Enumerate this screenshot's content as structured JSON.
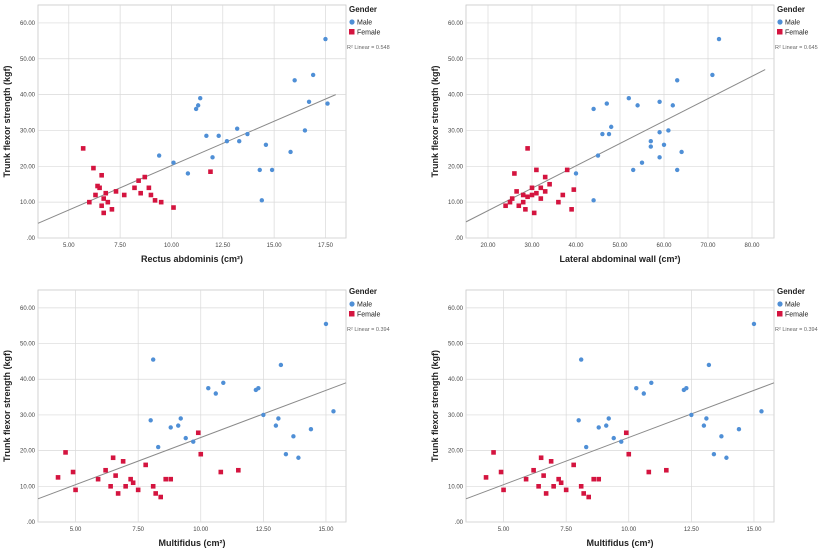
{
  "legend": {
    "title": "Gender",
    "male_label": "Male",
    "female_label": "Female",
    "male_color": "#4f8fd6",
    "female_color": "#d4143f"
  },
  "chart_data": [
    {
      "type": "scatter",
      "xlabel": "Rectus abdominis (cm²)",
      "ylabel": "Trunk flexor strength (kgf)",
      "r2_label": "R² Linear = 0.548",
      "xlim": [
        3.5,
        18.5
      ],
      "ylim": [
        0,
        65
      ],
      "xticks": [
        5.0,
        7.5,
        10.0,
        12.5,
        15.0,
        17.5
      ],
      "xtick_labels": [
        "5.00",
        "7.50",
        "10.00",
        "12.50",
        "15.00",
        "17.50"
      ],
      "yticks": [
        0,
        10,
        20,
        30,
        40,
        50,
        60
      ],
      "ytick_labels": [
        ".00",
        "10.00",
        "20.00",
        "30.00",
        "40.00",
        "50.00",
        "60.00"
      ],
      "fit_line": {
        "x": [
          3.5,
          18.0
        ],
        "y": [
          4.1,
          40.0
        ]
      },
      "series": [
        {
          "name": "Male",
          "marker": "circle",
          "points": [
            [
              9.4,
              23
            ],
            [
              10.1,
              21
            ],
            [
              10.8,
              18
            ],
            [
              11.2,
              36
            ],
            [
              11.4,
              39
            ],
            [
              11.3,
              37
            ],
            [
              11.7,
              28.5
            ],
            [
              12.0,
              22.5
            ],
            [
              12.3,
              28.5
            ],
            [
              12.7,
              27
            ],
            [
              13.2,
              30.5
            ],
            [
              13.3,
              27
            ],
            [
              13.7,
              29
            ],
            [
              14.3,
              19
            ],
            [
              14.6,
              26
            ],
            [
              14.9,
              19
            ],
            [
              14.4,
              10.5
            ],
            [
              15.8,
              24
            ],
            [
              16.0,
              44
            ],
            [
              16.5,
              30
            ],
            [
              16.7,
              38
            ],
            [
              16.9,
              45.5
            ],
            [
              17.5,
              55.5
            ],
            [
              17.6,
              37.5
            ]
          ]
        },
        {
          "name": "Female",
          "marker": "square",
          "points": [
            [
              5.7,
              25
            ],
            [
              6.0,
              10
            ],
            [
              6.2,
              19.5
            ],
            [
              6.3,
              12
            ],
            [
              6.4,
              14.5
            ],
            [
              6.5,
              14
            ],
            [
              6.6,
              17.5
            ],
            [
              6.6,
              9
            ],
            [
              6.7,
              11
            ],
            [
              6.7,
              7
            ],
            [
              6.8,
              12.5
            ],
            [
              6.9,
              10
            ],
            [
              7.1,
              8
            ],
            [
              7.3,
              13
            ],
            [
              7.7,
              12
            ],
            [
              8.2,
              14
            ],
            [
              8.4,
              16
            ],
            [
              8.5,
              12.5
            ],
            [
              8.7,
              17
            ],
            [
              8.9,
              14
            ],
            [
              9.0,
              12
            ],
            [
              9.2,
              10.5
            ],
            [
              9.5,
              10
            ],
            [
              10.1,
              8.5
            ],
            [
              11.9,
              18.5
            ]
          ]
        }
      ]
    },
    {
      "type": "scatter",
      "xlabel": "Lateral abdominal wall (cm²)",
      "ylabel": "Trunk flexor strength (kgf)",
      "r2_label": "R² Linear = 0.645",
      "xlim": [
        15,
        85
      ],
      "ylim": [
        0,
        65
      ],
      "xticks": [
        20,
        30,
        40,
        50,
        60,
        70,
        80
      ],
      "xtick_labels": [
        "20.00",
        "30.00",
        "40.00",
        "50.00",
        "60.00",
        "70.00",
        "80.00"
      ],
      "yticks": [
        0,
        10,
        20,
        30,
        40,
        50,
        60
      ],
      "ytick_labels": [
        ".00",
        "10.00",
        "20.00",
        "30.00",
        "40.00",
        "50.00",
        "60.00"
      ],
      "fit_line": {
        "x": [
          15,
          83
        ],
        "y": [
          4.5,
          47.0
        ]
      },
      "series": [
        {
          "name": "Male",
          "marker": "circle",
          "points": [
            [
              40.0,
              18
            ],
            [
              44.0,
              10.5
            ],
            [
              44.0,
              36
            ],
            [
              45.0,
              23
            ],
            [
              46.0,
              29
            ],
            [
              47.0,
              37.5
            ],
            [
              48.0,
              31
            ],
            [
              47.5,
              29
            ],
            [
              52.0,
              39
            ],
            [
              53.0,
              19
            ],
            [
              54.0,
              37
            ],
            [
              55.0,
              21
            ],
            [
              57.0,
              27
            ],
            [
              57.0,
              25.5
            ],
            [
              59.0,
              38
            ],
            [
              59.0,
              22.5
            ],
            [
              59.0,
              29.5
            ],
            [
              60.0,
              26
            ],
            [
              61.0,
              30
            ],
            [
              62.0,
              37
            ],
            [
              63.0,
              44
            ],
            [
              63.0,
              19
            ],
            [
              64.0,
              24
            ],
            [
              71.0,
              45.5
            ],
            [
              72.5,
              55.5
            ]
          ]
        },
        {
          "name": "Female",
          "marker": "square",
          "points": [
            [
              24.0,
              9
            ],
            [
              25.0,
              10
            ],
            [
              25.5,
              11
            ],
            [
              26.0,
              18
            ],
            [
              26.5,
              13
            ],
            [
              27.0,
              9
            ],
            [
              28.0,
              10
            ],
            [
              28.0,
              12
            ],
            [
              28.5,
              8
            ],
            [
              29.0,
              25
            ],
            [
              29.0,
              11.5
            ],
            [
              30.0,
              12
            ],
            [
              30.0,
              14
            ],
            [
              30.5,
              7
            ],
            [
              31.0,
              19
            ],
            [
              31.0,
              12.5
            ],
            [
              32.0,
              14
            ],
            [
              32.0,
              11
            ],
            [
              33.0,
              17
            ],
            [
              33.0,
              13
            ],
            [
              34.0,
              15
            ],
            [
              36.0,
              10
            ],
            [
              37.0,
              12
            ],
            [
              38.0,
              19
            ],
            [
              39.0,
              8
            ],
            [
              39.5,
              13.5
            ]
          ]
        }
      ]
    },
    {
      "type": "scatter",
      "xlabel": "Multifidus (cm²)",
      "ylabel": "Trunk flexor strength (kgf)",
      "r2_label": "R² Linear = 0.394",
      "xlim": [
        3.5,
        15.8
      ],
      "ylim": [
        0,
        65
      ],
      "xticks": [
        5.0,
        7.5,
        10.0,
        12.5,
        15.0
      ],
      "xtick_labels": [
        "5.00",
        "7.50",
        "10.00",
        "12.50",
        "15.00"
      ],
      "yticks": [
        0,
        10,
        20,
        30,
        40,
        50,
        60
      ],
      "ytick_labels": [
        ".00",
        "10.00",
        "20.00",
        "30.00",
        "40.00",
        "50.00",
        "60.00"
      ],
      "fit_line": {
        "x": [
          3.5,
          15.8
        ],
        "y": [
          6.5,
          39.0
        ]
      },
      "series": [
        {
          "name": "Male",
          "marker": "circle",
          "points": [
            [
              8.1,
              45.5
            ],
            [
              8.0,
              28.5
            ],
            [
              8.3,
              21
            ],
            [
              8.8,
              26.5
            ],
            [
              9.1,
              27
            ],
            [
              9.2,
              29
            ],
            [
              9.4,
              23.5
            ],
            [
              9.7,
              22.5
            ],
            [
              10.3,
              37.5
            ],
            [
              10.6,
              36
            ],
            [
              10.9,
              39
            ],
            [
              12.2,
              37
            ],
            [
              12.3,
              37.5
            ],
            [
              12.5,
              30
            ],
            [
              13.0,
              27
            ],
            [
              13.1,
              29
            ],
            [
              13.2,
              44
            ],
            [
              13.4,
              19
            ],
            [
              13.7,
              24
            ],
            [
              13.9,
              18
            ],
            [
              14.4,
              26
            ],
            [
              15.0,
              55.5
            ],
            [
              15.3,
              31
            ]
          ]
        },
        {
          "name": "Female",
          "marker": "square",
          "points": [
            [
              4.3,
              12.5
            ],
            [
              4.6,
              19.5
            ],
            [
              4.9,
              14
            ],
            [
              5.0,
              9
            ],
            [
              5.9,
              12
            ],
            [
              6.2,
              14.5
            ],
            [
              6.4,
              10
            ],
            [
              6.5,
              18
            ],
            [
              6.6,
              13
            ],
            [
              6.7,
              8
            ],
            [
              6.9,
              17
            ],
            [
              7.0,
              10
            ],
            [
              7.2,
              12
            ],
            [
              7.3,
              11
            ],
            [
              7.5,
              9
            ],
            [
              7.8,
              16
            ],
            [
              8.1,
              10
            ],
            [
              8.2,
              8
            ],
            [
              8.4,
              7
            ],
            [
              8.6,
              12
            ],
            [
              8.8,
              12
            ],
            [
              9.9,
              25
            ],
            [
              10.0,
              19
            ],
            [
              10.8,
              14
            ],
            [
              11.5,
              14.5
            ]
          ]
        }
      ]
    },
    {
      "type": "scatter",
      "xlabel": "Multifidus (cm²)",
      "ylabel": "Trunk flexor strength (kgf)",
      "r2_label": "R² Linear = 0.394",
      "xlim": [
        3.5,
        15.8
      ],
      "ylim": [
        0,
        65
      ],
      "xticks": [
        5.0,
        7.5,
        10.0,
        12.5,
        15.0
      ],
      "xtick_labels": [
        "5.00",
        "7.50",
        "10.00",
        "12.50",
        "15.00"
      ],
      "yticks": [
        0,
        10,
        20,
        30,
        40,
        50,
        60
      ],
      "ytick_labels": [
        ".00",
        "10.00",
        "20.00",
        "30.00",
        "40.00",
        "50.00",
        "60.00"
      ],
      "fit_line": {
        "x": [
          3.5,
          15.8
        ],
        "y": [
          6.5,
          39.0
        ]
      },
      "series": [
        {
          "name": "Male",
          "marker": "circle",
          "points": [
            [
              8.1,
              45.5
            ],
            [
              8.0,
              28.5
            ],
            [
              8.3,
              21
            ],
            [
              8.8,
              26.5
            ],
            [
              9.1,
              27
            ],
            [
              9.2,
              29
            ],
            [
              9.4,
              23.5
            ],
            [
              9.7,
              22.5
            ],
            [
              10.3,
              37.5
            ],
            [
              10.6,
              36
            ],
            [
              10.9,
              39
            ],
            [
              12.2,
              37
            ],
            [
              12.3,
              37.5
            ],
            [
              12.5,
              30
            ],
            [
              13.0,
              27
            ],
            [
              13.1,
              29
            ],
            [
              13.2,
              44
            ],
            [
              13.4,
              19
            ],
            [
              13.7,
              24
            ],
            [
              13.9,
              18
            ],
            [
              14.4,
              26
            ],
            [
              15.0,
              55.5
            ],
            [
              15.3,
              31
            ]
          ]
        },
        {
          "name": "Female",
          "marker": "square",
          "points": [
            [
              4.3,
              12.5
            ],
            [
              4.6,
              19.5
            ],
            [
              4.9,
              14
            ],
            [
              5.0,
              9
            ],
            [
              5.9,
              12
            ],
            [
              6.2,
              14.5
            ],
            [
              6.4,
              10
            ],
            [
              6.5,
              18
            ],
            [
              6.6,
              13
            ],
            [
              6.7,
              8
            ],
            [
              6.9,
              17
            ],
            [
              7.0,
              10
            ],
            [
              7.2,
              12
            ],
            [
              7.3,
              11
            ],
            [
              7.5,
              9
            ],
            [
              7.8,
              16
            ],
            [
              8.1,
              10
            ],
            [
              8.2,
              8
            ],
            [
              8.4,
              7
            ],
            [
              8.6,
              12
            ],
            [
              8.8,
              12
            ],
            [
              9.9,
              25
            ],
            [
              10.0,
              19
            ],
            [
              10.8,
              14
            ],
            [
              11.5,
              14.5
            ]
          ]
        }
      ]
    }
  ]
}
